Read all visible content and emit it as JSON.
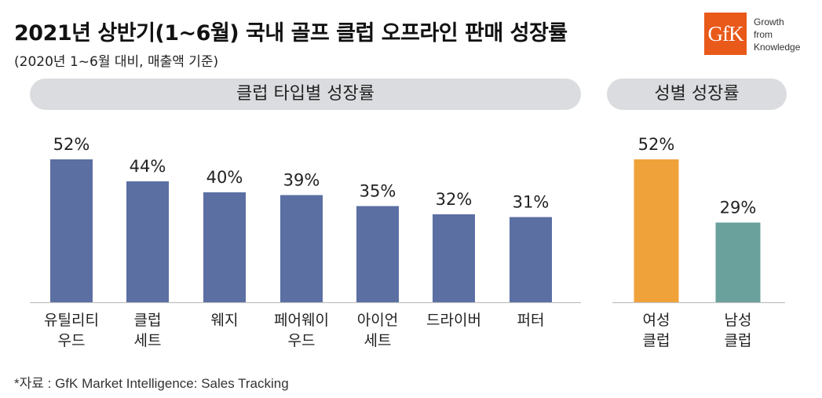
{
  "header": {
    "title": "2021년 상반기(1~6월) 국내 골프 클럽 오프라인 판매 성장률",
    "subtitle": "(2020년 1~6월 대비, 매출액 기준)"
  },
  "logo": {
    "brand": "GfK",
    "tagline": "Growth\nfrom\nKnowledge"
  },
  "chart_data": [
    {
      "type": "bar",
      "title": "클럽 타입별 성장률",
      "categories": [
        "유틸리티\n우드",
        "클럽\n세트",
        "웨지",
        "페어웨이\n우드",
        "아이언\n세트",
        "드라이버",
        "퍼터"
      ],
      "values": [
        52,
        44,
        40,
        39,
        35,
        32,
        31
      ],
      "value_labels": [
        "52%",
        "44%",
        "40%",
        "39%",
        "35%",
        "32%",
        "31%"
      ],
      "unit": "%",
      "colors": [
        "#5b6fa3"
      ],
      "ylim": [
        0,
        60
      ],
      "grid": false,
      "legend": "none"
    },
    {
      "type": "bar",
      "title": "성별 성장률",
      "categories": [
        "여성\n클럽",
        "남성\n클럽"
      ],
      "values": [
        52,
        29
      ],
      "value_labels": [
        "52%",
        "29%"
      ],
      "unit": "%",
      "colors": [
        "#f0a23a",
        "#6aa19c"
      ],
      "ylim": [
        0,
        60
      ],
      "grid": false,
      "legend": "none"
    }
  ],
  "footer": {
    "source": "*자료 : GfK Market Intelligence: Sales Tracking"
  }
}
